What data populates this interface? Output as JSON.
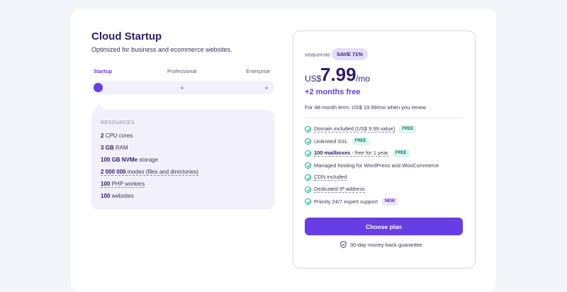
{
  "plan": {
    "title": "Cloud Startup",
    "subtitle": "Optimized for business and ecommerce websites."
  },
  "tiers": {
    "selected": "Startup",
    "items": [
      "Startup",
      "Professional",
      "Enterprise"
    ]
  },
  "resources": {
    "heading": "RESOURCES",
    "rows": [
      {
        "value": "2",
        "label": " CPU cores"
      },
      {
        "value": "3 GB",
        "label": " RAM"
      },
      {
        "value": "100 GB NVMe",
        "label": " storage"
      },
      {
        "value": "2 000 000",
        "label": " inodes (files and directories)"
      },
      {
        "value": "100",
        "label": " PHP workers"
      },
      {
        "value": "100",
        "label": " websites"
      }
    ]
  },
  "pricing": {
    "old_price": "US$ 27.99",
    "save_badge": "SAVE 71%",
    "currency": "US$",
    "amount": "7.99",
    "period": "/mo",
    "bonus": "+2 months free",
    "term": "For 48-month term. US$ 19.99/mo when you renew"
  },
  "features": [
    {
      "text": "Domain included (US$ 9.99 value)",
      "bold": "",
      "badge": "FREE",
      "badge_type": "free",
      "underline": true
    },
    {
      "text": "Unlimited SSL",
      "bold": "",
      "badge": "FREE",
      "badge_type": "free",
      "underline": false
    },
    {
      "bold": "100 mailboxes",
      "text": " - free for 1 year",
      "badge": "FREE",
      "badge_type": "free",
      "underline": true
    },
    {
      "text": "Managed hosting for WordPress and WooCommerce",
      "bold": "",
      "badge": "",
      "badge_type": "",
      "underline": false
    },
    {
      "text": "CDN included",
      "bold": "",
      "badge": "",
      "badge_type": "",
      "underline": true
    },
    {
      "text": "Dedicated IP address",
      "bold": "",
      "badge": "",
      "badge_type": "",
      "underline": true
    },
    {
      "text": "Priority 24/7 expert support",
      "bold": "",
      "badge": "NEW",
      "badge_type": "new",
      "underline": false
    }
  ],
  "cta": {
    "label": "Choose plan",
    "guarantee": "30-day money-back guarantee"
  },
  "colors": {
    "accent": "#673de6",
    "text": "#2f1c6a",
    "success": "#00b090"
  },
  "icons": {
    "feature": "check-circle-icon",
    "guarantee": "shield-check-icon"
  }
}
